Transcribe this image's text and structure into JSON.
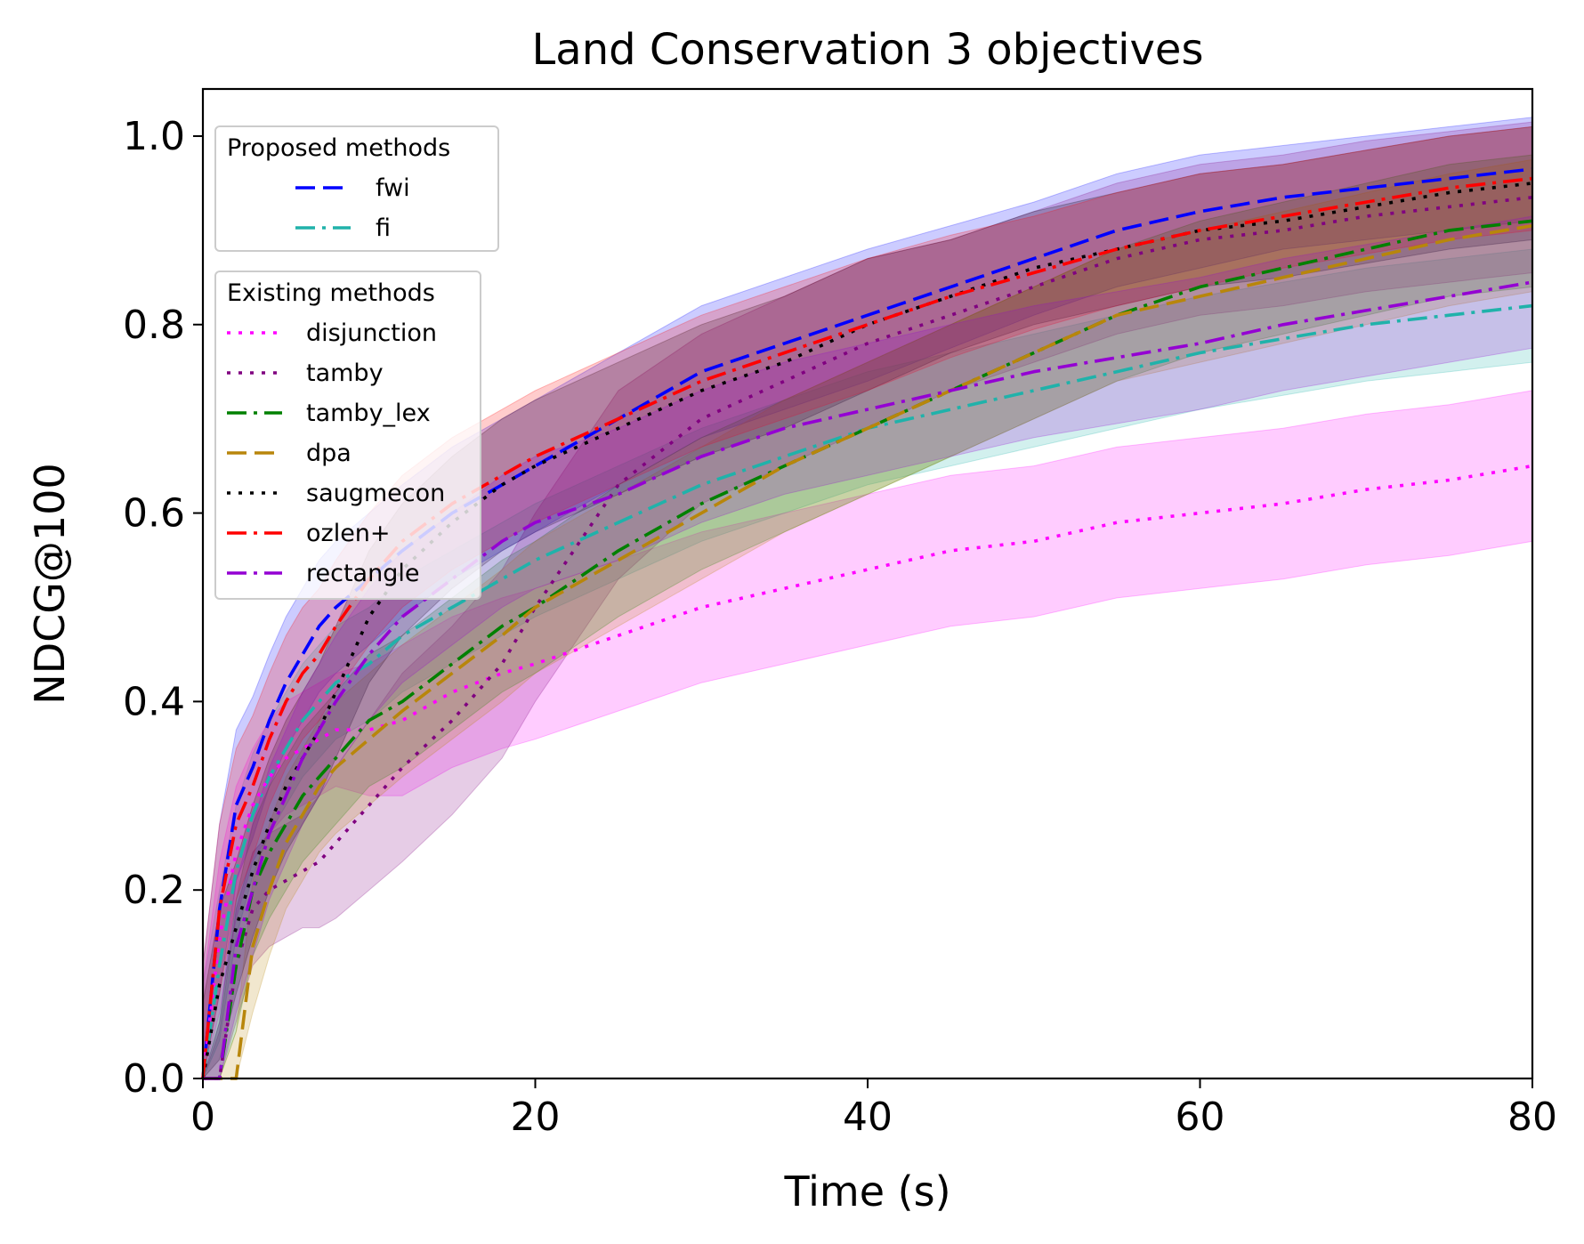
{
  "chart_data": {
    "type": "line",
    "title": "Land Conservation 3 objectives",
    "xlabel": "Time (s)",
    "ylabel": "NDCG@100",
    "xlim": [
      0,
      80
    ],
    "ylim": [
      0,
      1.05
    ],
    "xticks": [
      0,
      20,
      40,
      60,
      80
    ],
    "yticks": [
      0.0,
      0.2,
      0.4,
      0.6,
      0.8,
      1.0
    ],
    "xtick_labels": [
      "0",
      "20",
      "40",
      "60",
      "80"
    ],
    "ytick_labels": [
      "0.0",
      "0.2",
      "0.4",
      "0.6",
      "0.8",
      "1.0"
    ],
    "grid": false,
    "legend_groups": [
      {
        "title": "Proposed methods",
        "placement": "upper-left",
        "series": [
          "fwi",
          "fi"
        ]
      },
      {
        "title": "Existing methods",
        "placement": "left",
        "series": [
          "disjunction",
          "tamby",
          "tamby_lex",
          "dpa",
          "saugmecon",
          "ozlen+",
          "rectangle"
        ]
      }
    ],
    "x": [
      0,
      1,
      2,
      3,
      4,
      5,
      6,
      7,
      8,
      10,
      12,
      15,
      18,
      20,
      25,
      30,
      35,
      40,
      45,
      50,
      55,
      60,
      65,
      70,
      75,
      80
    ],
    "series": [
      {
        "name": "fwi",
        "color": "#0000ff",
        "dash": "dashed",
        "values": [
          0.0,
          0.18,
          0.29,
          0.33,
          0.38,
          0.42,
          0.45,
          0.48,
          0.5,
          0.53,
          0.56,
          0.6,
          0.63,
          0.65,
          0.7,
          0.75,
          0.78,
          0.81,
          0.84,
          0.87,
          0.9,
          0.92,
          0.935,
          0.945,
          0.955,
          0.965
        ],
        "band": [
          0.12,
          0.09,
          0.08,
          0.075,
          0.07,
          0.07,
          0.07,
          0.07,
          0.07,
          0.07,
          0.07,
          0.07,
          0.07,
          0.07,
          0.07,
          0.07,
          0.07,
          0.07,
          0.065,
          0.06,
          0.06,
          0.06,
          0.055,
          0.055,
          0.055,
          0.055
        ]
      },
      {
        "name": "fi",
        "color": "#20b2aa",
        "dash": "dashdot",
        "values": [
          0.0,
          0.12,
          0.22,
          0.28,
          0.32,
          0.35,
          0.38,
          0.4,
          0.42,
          0.44,
          0.47,
          0.5,
          0.53,
          0.55,
          0.59,
          0.63,
          0.66,
          0.69,
          0.71,
          0.73,
          0.75,
          0.77,
          0.785,
          0.8,
          0.81,
          0.82
        ],
        "band": [
          0.1,
          0.08,
          0.07,
          0.065,
          0.06,
          0.06,
          0.06,
          0.06,
          0.06,
          0.06,
          0.06,
          0.06,
          0.06,
          0.06,
          0.06,
          0.06,
          0.06,
          0.06,
          0.06,
          0.06,
          0.06,
          0.06,
          0.06,
          0.06,
          0.06,
          0.06
        ]
      },
      {
        "name": "disjunction",
        "color": "#ff00ff",
        "dash": "dotted",
        "values": [
          0.0,
          0.15,
          0.24,
          0.29,
          0.32,
          0.34,
          0.35,
          0.36,
          0.37,
          0.37,
          0.38,
          0.41,
          0.43,
          0.44,
          0.47,
          0.5,
          0.52,
          0.54,
          0.56,
          0.57,
          0.59,
          0.6,
          0.61,
          0.625,
          0.635,
          0.65
        ],
        "band": [
          0.1,
          0.08,
          0.07,
          0.06,
          0.06,
          0.06,
          0.06,
          0.06,
          0.06,
          0.07,
          0.08,
          0.08,
          0.08,
          0.08,
          0.08,
          0.08,
          0.08,
          0.08,
          0.08,
          0.08,
          0.08,
          0.08,
          0.08,
          0.08,
          0.08,
          0.08
        ]
      },
      {
        "name": "tamby",
        "color": "#800080",
        "dash": "dotted",
        "values": [
          0.0,
          0.0,
          0.12,
          0.18,
          0.2,
          0.21,
          0.22,
          0.23,
          0.25,
          0.29,
          0.33,
          0.38,
          0.44,
          0.5,
          0.63,
          0.7,
          0.74,
          0.78,
          0.81,
          0.84,
          0.87,
          0.89,
          0.9,
          0.915,
          0.925,
          0.935
        ],
        "band": [
          0.0,
          0.05,
          0.06,
          0.06,
          0.06,
          0.06,
          0.06,
          0.07,
          0.08,
          0.09,
          0.1,
          0.1,
          0.1,
          0.1,
          0.1,
          0.09,
          0.09,
          0.09,
          0.08,
          0.08,
          0.08,
          0.08,
          0.08,
          0.08,
          0.08,
          0.08
        ]
      },
      {
        "name": "tamby_lex",
        "color": "#008000",
        "dash": "dashdot",
        "values": [
          0.0,
          0.0,
          0.12,
          0.2,
          0.24,
          0.27,
          0.3,
          0.32,
          0.34,
          0.38,
          0.4,
          0.44,
          0.48,
          0.5,
          0.56,
          0.61,
          0.65,
          0.69,
          0.73,
          0.77,
          0.81,
          0.84,
          0.86,
          0.88,
          0.9,
          0.91
        ],
        "band": [
          0.0,
          0.06,
          0.07,
          0.07,
          0.07,
          0.07,
          0.07,
          0.07,
          0.07,
          0.07,
          0.07,
          0.07,
          0.07,
          0.07,
          0.07,
          0.07,
          0.07,
          0.07,
          0.07,
          0.07,
          0.07,
          0.07,
          0.07,
          0.07,
          0.07,
          0.07
        ]
      },
      {
        "name": "dpa",
        "color": "#b8860b",
        "dash": "dashed",
        "values": [
          0.0,
          0.0,
          0.0,
          0.14,
          0.2,
          0.25,
          0.28,
          0.31,
          0.33,
          0.36,
          0.39,
          0.43,
          0.47,
          0.5,
          0.55,
          0.6,
          0.65,
          0.69,
          0.73,
          0.77,
          0.81,
          0.83,
          0.85,
          0.87,
          0.89,
          0.905
        ],
        "band": [
          0.0,
          0.0,
          0.05,
          0.07,
          0.07,
          0.07,
          0.07,
          0.07,
          0.07,
          0.07,
          0.07,
          0.07,
          0.07,
          0.07,
          0.07,
          0.07,
          0.07,
          0.07,
          0.07,
          0.07,
          0.07,
          0.07,
          0.07,
          0.07,
          0.07,
          0.07
        ]
      },
      {
        "name": "saugmecon",
        "color": "#000000",
        "dash": "dotted",
        "values": [
          0.0,
          0.1,
          0.16,
          0.22,
          0.27,
          0.31,
          0.34,
          0.37,
          0.41,
          0.49,
          0.54,
          0.59,
          0.63,
          0.65,
          0.69,
          0.73,
          0.76,
          0.8,
          0.83,
          0.86,
          0.88,
          0.9,
          0.91,
          0.925,
          0.94,
          0.95
        ],
        "band": [
          0.08,
          0.08,
          0.07,
          0.07,
          0.07,
          0.07,
          0.07,
          0.07,
          0.07,
          0.07,
          0.07,
          0.07,
          0.07,
          0.07,
          0.07,
          0.07,
          0.07,
          0.07,
          0.06,
          0.06,
          0.06,
          0.06,
          0.06,
          0.06,
          0.06,
          0.06
        ]
      },
      {
        "name": "ozlen+",
        "color": "#ff0000",
        "dash": "dashdot",
        "values": [
          0.0,
          0.18,
          0.27,
          0.31,
          0.36,
          0.4,
          0.43,
          0.45,
          0.48,
          0.53,
          0.57,
          0.61,
          0.64,
          0.66,
          0.7,
          0.74,
          0.77,
          0.8,
          0.83,
          0.855,
          0.88,
          0.9,
          0.915,
          0.93,
          0.945,
          0.955
        ],
        "band": [
          0.12,
          0.09,
          0.08,
          0.075,
          0.07,
          0.07,
          0.07,
          0.07,
          0.07,
          0.07,
          0.07,
          0.07,
          0.07,
          0.07,
          0.07,
          0.07,
          0.07,
          0.07,
          0.065,
          0.06,
          0.06,
          0.06,
          0.055,
          0.055,
          0.055,
          0.055
        ]
      },
      {
        "name": "rectangle",
        "color": "#9400d3",
        "dash": "dashdot",
        "values": [
          0.0,
          0.0,
          0.14,
          0.2,
          0.26,
          0.3,
          0.34,
          0.37,
          0.4,
          0.45,
          0.49,
          0.53,
          0.57,
          0.59,
          0.62,
          0.66,
          0.69,
          0.71,
          0.73,
          0.75,
          0.765,
          0.78,
          0.8,
          0.815,
          0.83,
          0.845
        ],
        "band": [
          0.0,
          0.06,
          0.07,
          0.07,
          0.07,
          0.07,
          0.07,
          0.07,
          0.07,
          0.07,
          0.07,
          0.07,
          0.07,
          0.07,
          0.07,
          0.07,
          0.07,
          0.07,
          0.07,
          0.07,
          0.07,
          0.07,
          0.07,
          0.07,
          0.07,
          0.07
        ]
      }
    ]
  }
}
